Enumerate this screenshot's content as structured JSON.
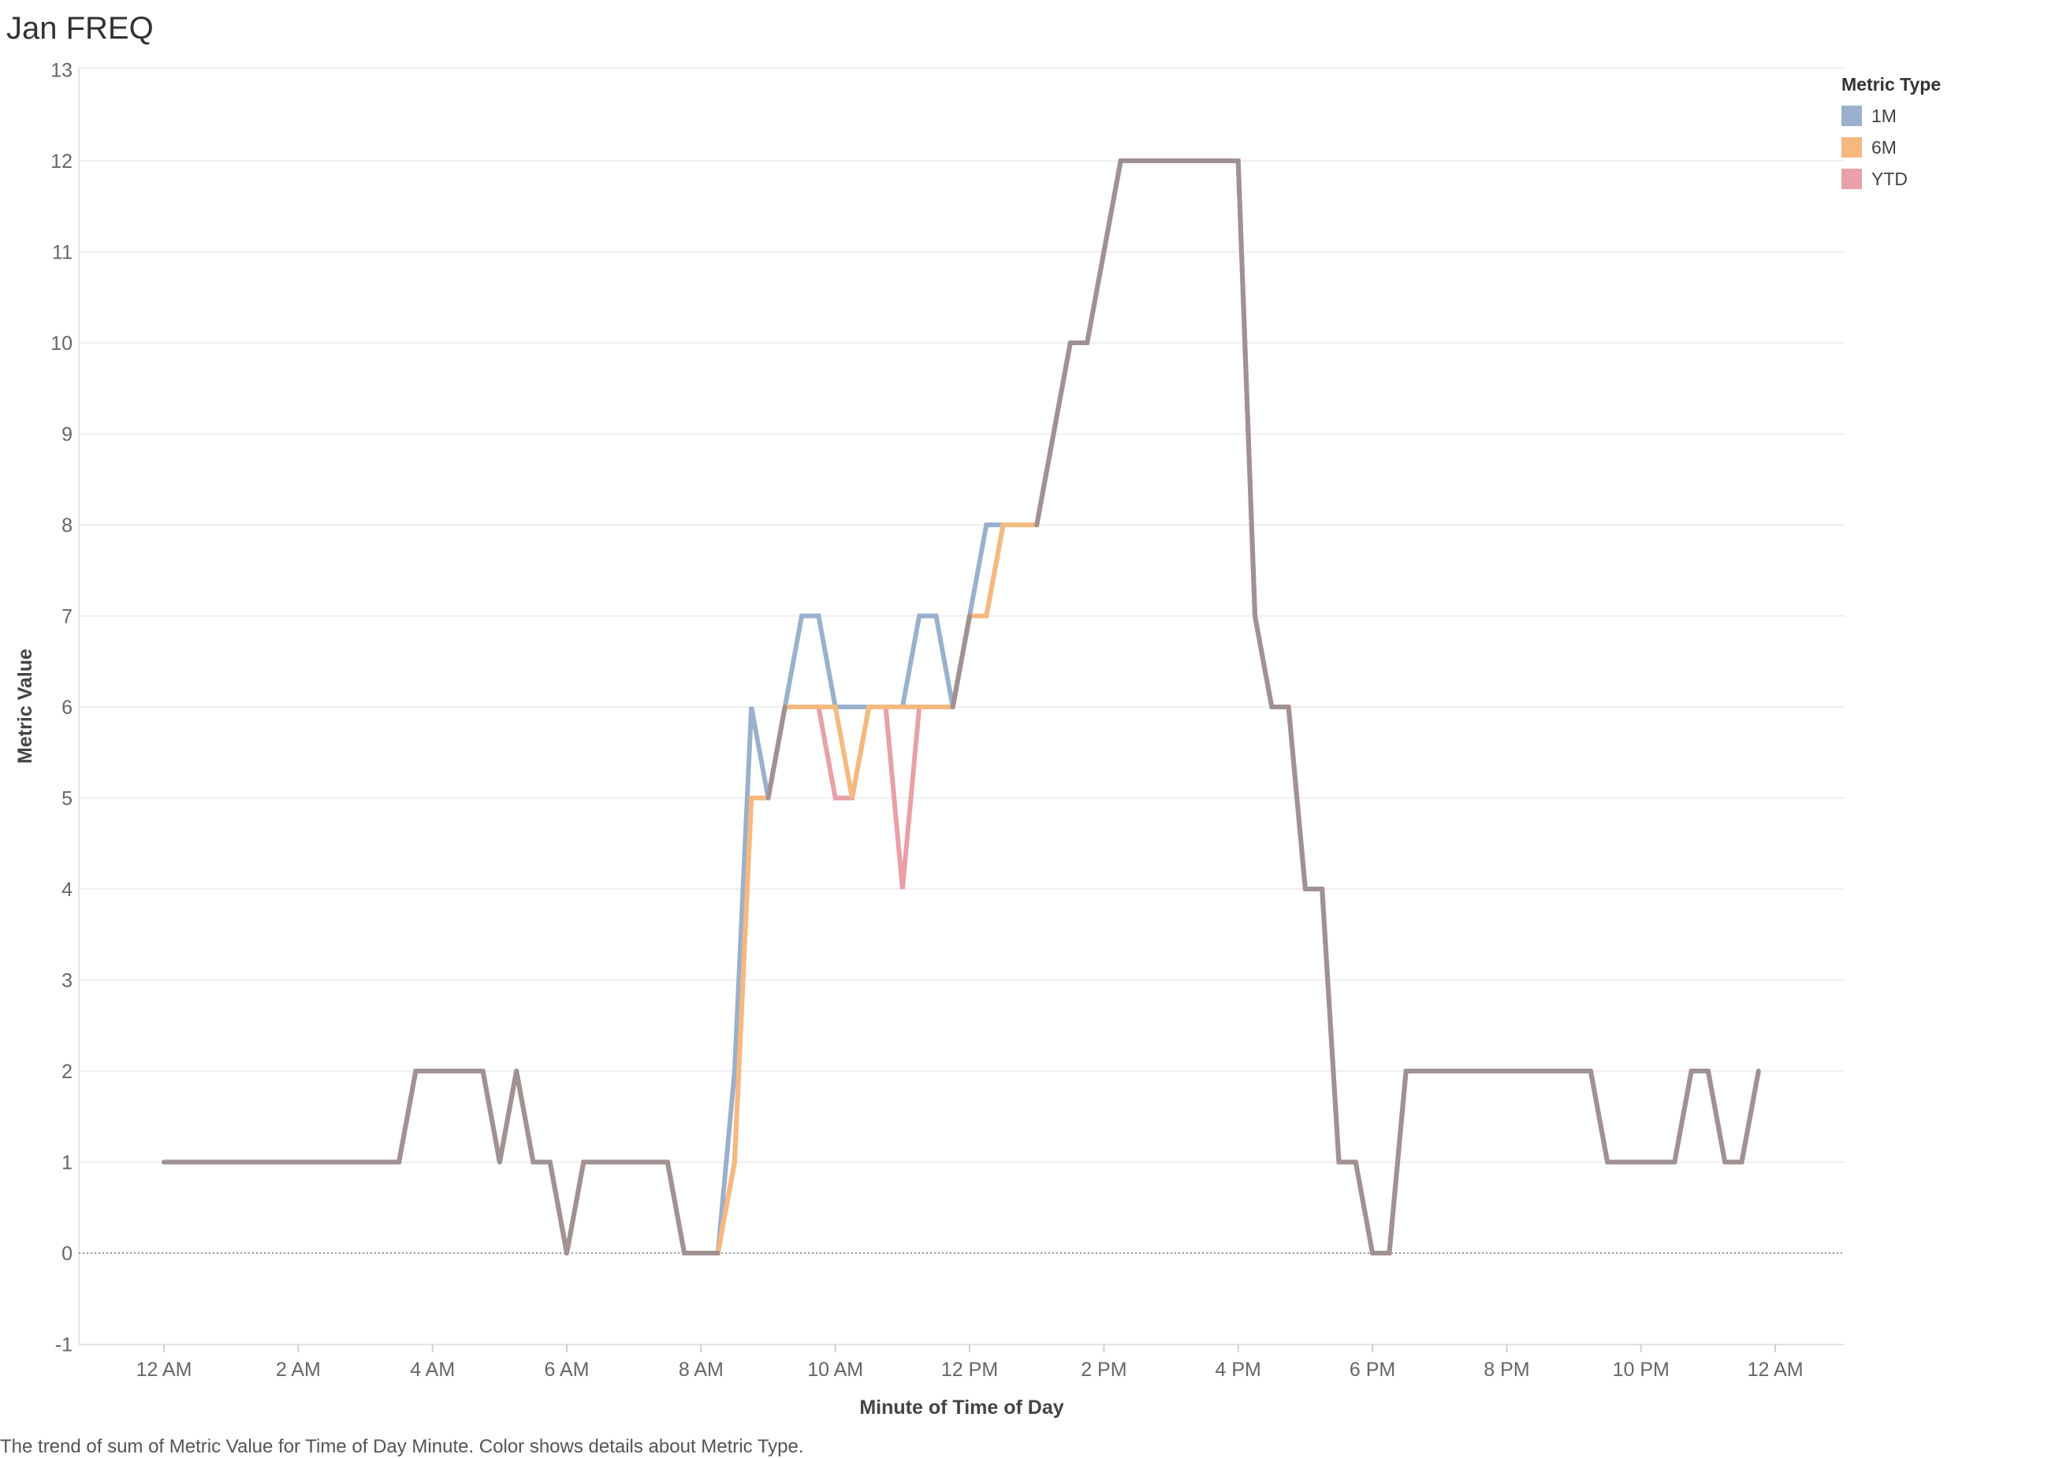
{
  "title": "Jan FREQ",
  "caption": "The trend of sum of Metric Value for Time of Day Minute.  Color shows details about Metric Type.",
  "chart_data": {
    "type": "line",
    "xlabel": "Minute of Time of Day",
    "ylabel": "Metric Value",
    "ylim": [
      -1,
      13
    ],
    "yticks": [
      -1,
      0,
      1,
      2,
      3,
      4,
      5,
      6,
      7,
      8,
      9,
      10,
      11,
      12,
      13
    ],
    "xlim": [
      "11:15 PM (prev)",
      "11:59 PM"
    ],
    "xticks": [
      {
        "label": "12 AM",
        "hour": 0
      },
      {
        "label": "2 AM",
        "hour": 2
      },
      {
        "label": "4 AM",
        "hour": 4
      },
      {
        "label": "6 AM",
        "hour": 6
      },
      {
        "label": "8 AM",
        "hour": 8
      },
      {
        "label": "10 AM",
        "hour": 10
      },
      {
        "label": "12 PM",
        "hour": 12
      },
      {
        "label": "2 PM",
        "hour": 14
      },
      {
        "label": "4 PM",
        "hour": 16
      },
      {
        "label": "6 PM",
        "hour": 18
      },
      {
        "label": "8 PM",
        "hour": 20
      },
      {
        "label": "10 PM",
        "hour": 22
      },
      {
        "label": "12 AM",
        "hour": 24
      }
    ],
    "grid": true,
    "legend": {
      "title": "Metric Type",
      "placement": "top-right"
    },
    "series": [
      {
        "name": "1M",
        "color": "#9ab0cc",
        "points": [
          [
            0,
            1
          ],
          [
            3.5,
            1
          ],
          [
            3.75,
            2
          ],
          [
            4.75,
            2
          ],
          [
            5,
            1
          ],
          [
            5.25,
            2
          ],
          [
            5.5,
            1
          ],
          [
            5.75,
            1
          ],
          [
            6,
            0
          ],
          [
            6.25,
            1
          ],
          [
            7.5,
            1
          ],
          [
            7.75,
            0
          ],
          [
            8.25,
            0
          ],
          [
            8.5,
            2
          ],
          [
            8.75,
            6
          ],
          [
            9,
            5
          ],
          [
            9.25,
            6
          ],
          [
            9.5,
            7
          ],
          [
            9.75,
            7
          ],
          [
            10,
            6
          ],
          [
            11,
            6
          ],
          [
            11.25,
            7
          ],
          [
            11.5,
            7
          ],
          [
            11.75,
            6
          ],
          [
            12,
            7
          ],
          [
            12.25,
            8
          ],
          [
            13,
            8
          ],
          [
            13.5,
            10
          ],
          [
            13.75,
            10
          ],
          [
            14.25,
            12
          ],
          [
            16,
            12
          ],
          [
            16.25,
            7
          ],
          [
            16.5,
            6
          ],
          [
            16.75,
            6
          ],
          [
            17,
            4
          ],
          [
            17.25,
            4
          ],
          [
            17.5,
            1
          ],
          [
            17.75,
            1
          ],
          [
            18,
            0
          ],
          [
            18.25,
            0
          ],
          [
            18.5,
            2
          ],
          [
            21.25,
            2
          ],
          [
            21.5,
            1
          ],
          [
            22.5,
            1
          ],
          [
            22.75,
            2
          ],
          [
            23,
            2
          ],
          [
            23.25,
            1
          ],
          [
            23.5,
            1
          ],
          [
            23.75,
            2
          ]
        ]
      },
      {
        "name": "6M",
        "color": "#f5b97f",
        "points": [
          [
            0,
            1
          ],
          [
            3.5,
            1
          ],
          [
            3.75,
            2
          ],
          [
            4.75,
            2
          ],
          [
            5,
            1
          ],
          [
            5.25,
            2
          ],
          [
            5.5,
            1
          ],
          [
            5.75,
            1
          ],
          [
            6,
            0
          ],
          [
            6.25,
            1
          ],
          [
            7.5,
            1
          ],
          [
            7.75,
            0
          ],
          [
            8.25,
            0
          ],
          [
            8.5,
            1
          ],
          [
            8.75,
            5
          ],
          [
            9,
            5
          ],
          [
            9.25,
            6
          ],
          [
            9.75,
            6
          ],
          [
            10,
            6
          ],
          [
            10.25,
            5
          ],
          [
            10.5,
            6
          ],
          [
            11.75,
            6
          ],
          [
            12,
            7
          ],
          [
            12.25,
            7
          ],
          [
            12.5,
            8
          ],
          [
            13,
            8
          ],
          [
            13.5,
            10
          ],
          [
            13.75,
            10
          ],
          [
            14.25,
            12
          ],
          [
            16,
            12
          ],
          [
            16.25,
            7
          ],
          [
            16.5,
            6
          ],
          [
            16.75,
            6
          ],
          [
            17,
            4
          ],
          [
            17.25,
            4
          ],
          [
            17.5,
            1
          ],
          [
            17.75,
            1
          ],
          [
            18,
            0
          ],
          [
            18.25,
            0
          ],
          [
            18.5,
            2
          ],
          [
            21.25,
            2
          ],
          [
            21.5,
            1
          ],
          [
            22.5,
            1
          ],
          [
            22.75,
            2
          ],
          [
            23,
            2
          ],
          [
            23.25,
            1
          ],
          [
            23.5,
            1
          ],
          [
            23.75,
            2
          ]
        ]
      },
      {
        "name": "YTD",
        "color": "#e9a0a6",
        "points": [
          [
            0,
            1
          ],
          [
            3.5,
            1
          ],
          [
            3.75,
            2
          ],
          [
            4.75,
            2
          ],
          [
            5,
            1
          ],
          [
            5.25,
            2
          ],
          [
            5.5,
            1
          ],
          [
            5.75,
            1
          ],
          [
            6,
            0
          ],
          [
            6.25,
            1
          ],
          [
            7.5,
            1
          ],
          [
            7.75,
            0
          ],
          [
            8.25,
            0
          ],
          [
            8.5,
            1
          ],
          [
            8.75,
            5
          ],
          [
            9,
            5
          ],
          [
            9.25,
            6
          ],
          [
            9.75,
            6
          ],
          [
            10,
            5
          ],
          [
            10.25,
            5
          ],
          [
            10.5,
            6
          ],
          [
            10.75,
            6
          ],
          [
            11,
            4
          ],
          [
            11.25,
            6
          ],
          [
            11.75,
            6
          ],
          [
            12,
            7
          ],
          [
            12.25,
            7
          ],
          [
            12.5,
            8
          ],
          [
            13,
            8
          ],
          [
            13.5,
            10
          ],
          [
            13.75,
            10
          ],
          [
            14.25,
            12
          ],
          [
            16,
            12
          ],
          [
            16.25,
            7
          ],
          [
            16.5,
            6
          ],
          [
            16.75,
            6
          ],
          [
            17,
            4
          ],
          [
            17.25,
            4
          ],
          [
            17.5,
            1
          ],
          [
            17.75,
            1
          ],
          [
            18,
            0
          ],
          [
            18.25,
            0
          ],
          [
            18.5,
            2
          ],
          [
            21.25,
            2
          ],
          [
            21.5,
            1
          ],
          [
            22.5,
            1
          ],
          [
            22.75,
            2
          ],
          [
            23,
            2
          ],
          [
            23.25,
            1
          ],
          [
            23.5,
            1
          ],
          [
            23.75,
            2
          ]
        ]
      }
    ]
  }
}
